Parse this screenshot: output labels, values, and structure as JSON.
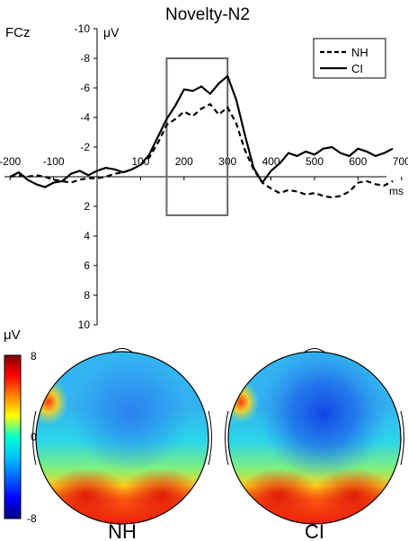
{
  "chart_data": {
    "type": "line",
    "title": "Novelty-N2",
    "channel": "FCz",
    "ylabel": "μV",
    "xlabel": "ms",
    "y_axis_inverted": true,
    "xlim": [
      -200,
      700
    ],
    "ylim": [
      -10,
      10
    ],
    "x_ticks": [
      -200,
      -100,
      100,
      200,
      300,
      400,
      500,
      600,
      700
    ],
    "x_tick_labels": [
      "-200",
      "-100",
      "100",
      "200",
      "300",
      "400",
      "500",
      "600",
      "700"
    ],
    "y_ticks": [
      -10,
      -8,
      -6,
      -4,
      -2,
      2,
      4,
      6,
      8,
      10
    ],
    "y_tick_labels": [
      "-10",
      "-8",
      "-6",
      "-4",
      "-2",
      "2",
      "4",
      "6",
      "8",
      "10"
    ],
    "window_box": {
      "x": [
        160,
        300
      ],
      "y": [
        -8,
        2.6
      ]
    },
    "legend": {
      "placement": "top-right",
      "entries": [
        "NH",
        "CI"
      ]
    },
    "series": [
      {
        "name": "NH",
        "style": "dashed",
        "x": [
          -200,
          -180,
          -160,
          -140,
          -120,
          -100,
          -80,
          -60,
          -40,
          -20,
          0,
          20,
          40,
          60,
          80,
          100,
          120,
          140,
          160,
          180,
          200,
          220,
          240,
          260,
          280,
          300,
          320,
          340,
          360,
          380,
          400,
          420,
          440,
          460,
          480,
          500,
          520,
          540,
          560,
          580,
          600,
          620,
          640,
          660,
          680
        ],
        "values": [
          0.0,
          -0.1,
          0.0,
          -0.1,
          0.0,
          0.2,
          0.3,
          0.4,
          0.2,
          0.1,
          0.1,
          0.0,
          -0.2,
          -0.3,
          -0.5,
          -0.8,
          -1.3,
          -2.3,
          -3.5,
          -3.9,
          -4.4,
          -4.1,
          -4.6,
          -4.9,
          -4.2,
          -4.7,
          -3.6,
          -1.8,
          -0.5,
          0.4,
          0.8,
          1.1,
          0.9,
          1.0,
          1.2,
          1.1,
          1.3,
          1.4,
          1.3,
          1.0,
          0.4,
          0.3,
          0.5,
          0.6,
          0.3
        ]
      },
      {
        "name": "CI",
        "style": "solid",
        "x": [
          -200,
          -180,
          -160,
          -140,
          -120,
          -100,
          -80,
          -60,
          -40,
          -20,
          0,
          20,
          40,
          60,
          80,
          100,
          120,
          140,
          160,
          180,
          200,
          220,
          240,
          260,
          280,
          300,
          320,
          340,
          360,
          380,
          400,
          420,
          440,
          460,
          480,
          500,
          520,
          540,
          560,
          580,
          600,
          620,
          640,
          660,
          680
        ],
        "values": [
          0.0,
          -0.3,
          0.2,
          0.5,
          0.7,
          0.4,
          0.3,
          -0.2,
          -0.4,
          -0.1,
          -0.4,
          -0.6,
          -0.5,
          -0.3,
          -0.5,
          -0.8,
          -1.5,
          -2.7,
          -3.9,
          -4.8,
          -5.9,
          -5.8,
          -6.1,
          -5.6,
          -6.3,
          -6.8,
          -5.2,
          -2.8,
          -0.6,
          0.4,
          -0.4,
          -0.9,
          -1.6,
          -1.4,
          -1.7,
          -1.5,
          -1.9,
          -2.0,
          -1.6,
          -1.4,
          -1.9,
          -1.7,
          -1.4,
          -1.6,
          -1.9
        ]
      }
    ],
    "colorbar": {
      "label": "μV",
      "max": "8",
      "mid": "0",
      "min": "-8"
    },
    "topomaps": [
      {
        "name": "NH",
        "label": "NH"
      },
      {
        "name": "CI",
        "label": "CI"
      }
    ]
  }
}
